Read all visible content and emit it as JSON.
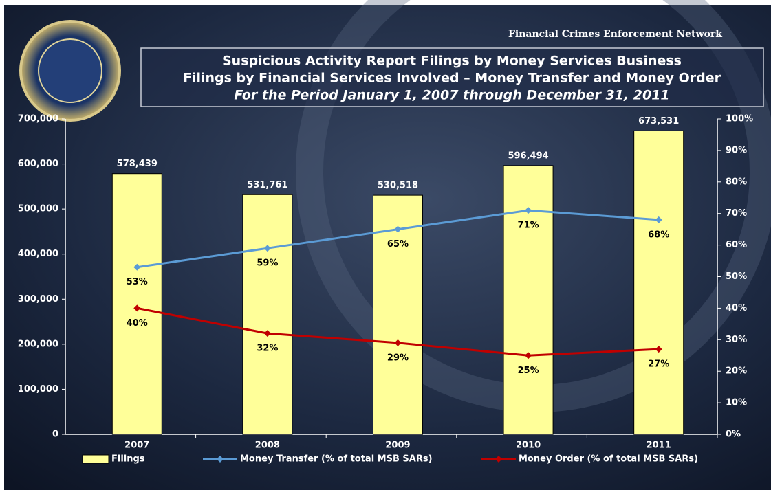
{
  "chart_data": {
    "type": "bar-line",
    "header": "Financial Crimes Enforcement Network",
    "title": "Suspicious Activity Report Filings by Money Services Business",
    "title2": "Filings by Financial Services Involved – Money Transfer and Money Order",
    "subtitle": "For the Period January 1, 2007 through December 31, 2011",
    "categories": [
      "2007",
      "2008",
      "2009",
      "2010",
      "2011"
    ],
    "series": [
      {
        "name": "Filings",
        "type": "bar",
        "color": "#ffff99",
        "values": [
          578439,
          531761,
          530518,
          596494,
          673531
        ],
        "value_labels": [
          "578,439",
          "531,761",
          "530,518",
          "596,494",
          "673,531"
        ]
      },
      {
        "name": "Money Transfer (% of total MSB SARs)",
        "type": "line",
        "axis": "y2",
        "color": "#5b9bd5",
        "values": [
          53,
          59,
          65,
          71,
          68
        ],
        "value_labels": [
          "53%",
          "59%",
          "65%",
          "71%",
          "68%"
        ]
      },
      {
        "name": "Money Order (% of total MSB SARs)",
        "type": "line",
        "axis": "y2",
        "color": "#c00000",
        "values": [
          40,
          32,
          29,
          25,
          27
        ],
        "value_labels": [
          "40%",
          "32%",
          "29%",
          "25%",
          "27%"
        ]
      }
    ],
    "ylim": [
      0,
      700000
    ],
    "yticks": [
      0,
      {
        "value": 100000,
        "label": "100,000"
      },
      {
        "value": 200000,
        "label": "200,000"
      },
      {
        "value": 300000,
        "label": "300,000"
      },
      {
        "value": 400000,
        "label": "400,000"
      },
      {
        "value": 500000,
        "label": "500,000"
      },
      {
        "value": 600000,
        "label": "600,000"
      },
      {
        "value": 700000,
        "label": "700,000"
      }
    ],
    "y2lim": [
      0,
      100
    ],
    "y2ticks": [
      {
        "value": 0,
        "label": "0%"
      },
      {
        "value": 10,
        "label": "10%"
      },
      {
        "value": 20,
        "label": "20%"
      },
      {
        "value": 30,
        "label": "30%"
      },
      {
        "value": 40,
        "label": "40%"
      },
      {
        "value": 50,
        "label": "50%"
      },
      {
        "value": 60,
        "label": "60%"
      },
      {
        "value": 70,
        "label": "70%"
      },
      {
        "value": 80,
        "label": "80%"
      },
      {
        "value": 90,
        "label": "90%"
      },
      {
        "value": 100,
        "label": "100%"
      }
    ],
    "grid": false,
    "legend": "bottom"
  }
}
